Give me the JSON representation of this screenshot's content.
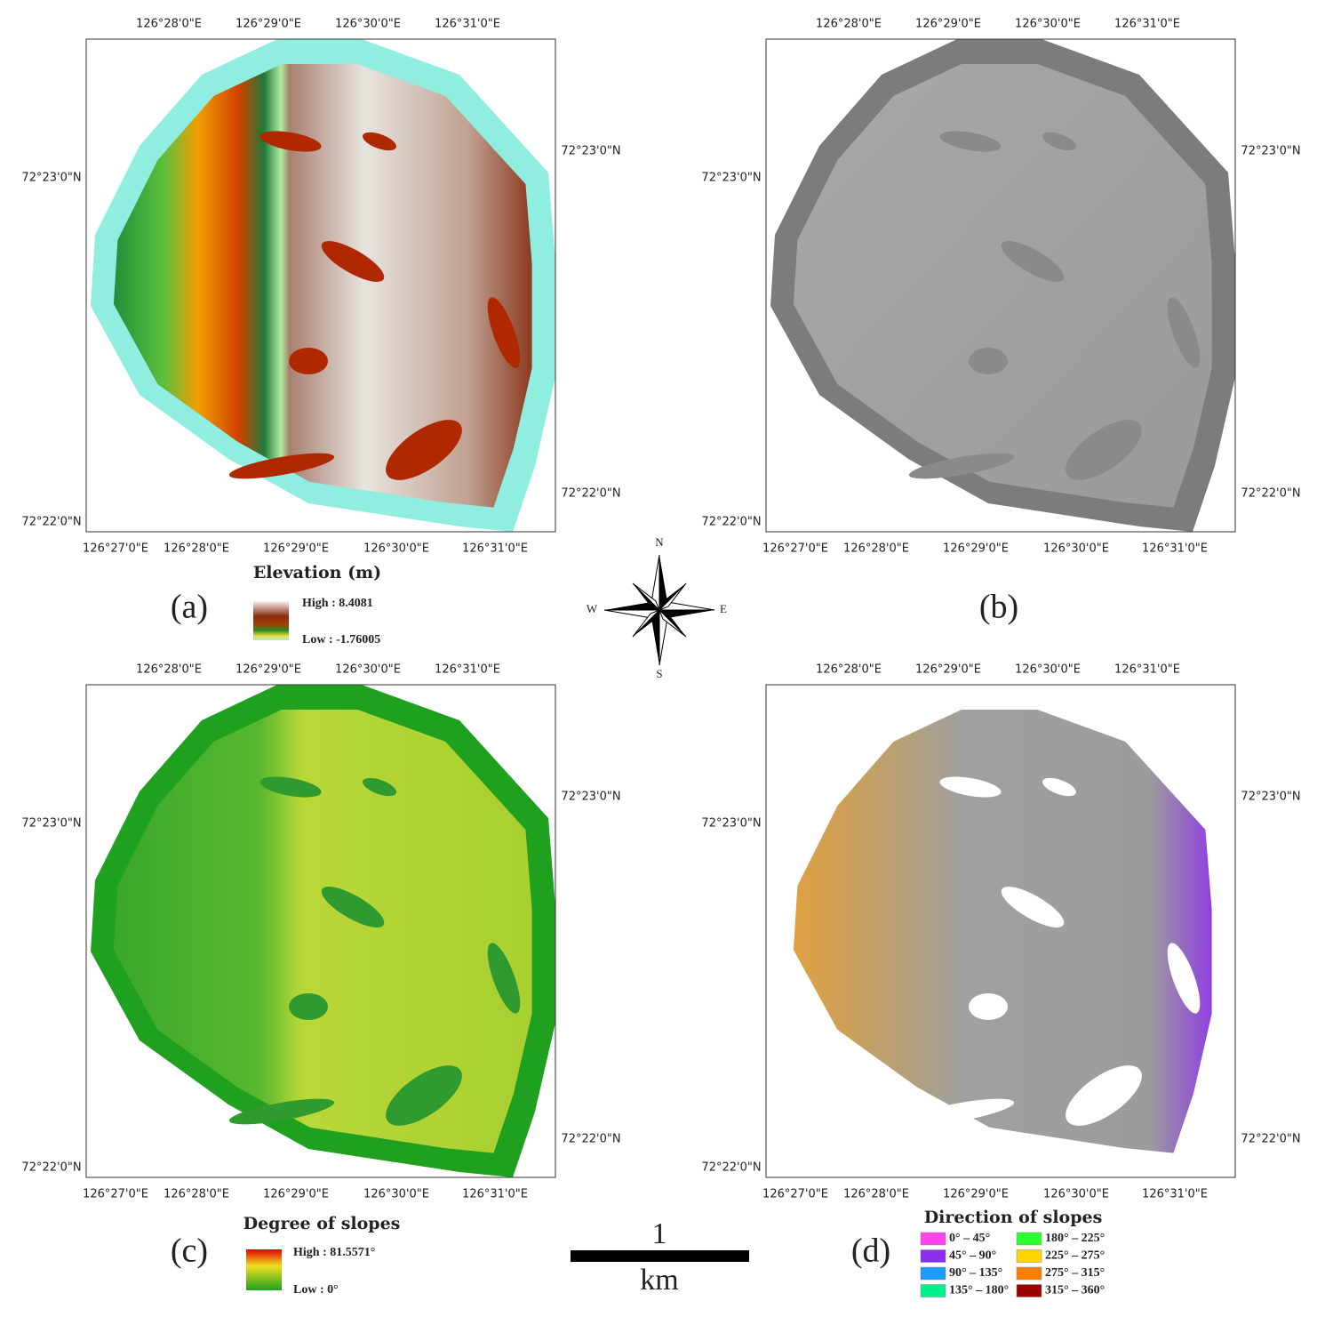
{
  "panels": [
    {
      "label": "(a)",
      "top_lon": [
        "126°28'0\"E",
        "126°29'0\"E",
        "126°30'0\"E",
        "126°31'0\"E"
      ],
      "bottom_lon": [
        "126°27'0\"E",
        "126°28'0\"E",
        "126°29'0\"E",
        "126°30'0\"E",
        "126°31'0\"E"
      ],
      "left_lat": [
        "72°23'0\"N",
        "72°22'0\"N"
      ],
      "right_lat": [
        "72°23'0\"N",
        "72°22'0\"N"
      ],
      "legend": {
        "title": "Elevation (m)",
        "high": "High : 8.4081",
        "low": "Low : -1.76005"
      }
    },
    {
      "label": "(b)",
      "top_lon": [
        "126°28'0\"E",
        "126°29'0\"E",
        "126°30'0\"E",
        "126°31'0\"E"
      ],
      "bottom_lon": [
        "126°27'0\"E",
        "126°28'0\"E",
        "126°29'0\"E",
        "126°30'0\"E",
        "126°31'0\"E"
      ],
      "left_lat": [
        "72°23'0\"N",
        "72°22'0\"N"
      ],
      "right_lat": [
        "72°23'0\"N",
        "72°22'0\"N"
      ]
    },
    {
      "label": "(c)",
      "top_lon": [
        "126°28'0\"E",
        "126°29'0\"E",
        "126°30'0\"E",
        "126°31'0\"E"
      ],
      "bottom_lon": [
        "126°27'0\"E",
        "126°28'0\"E",
        "126°29'0\"E",
        "126°30'0\"E",
        "126°31'0\"E"
      ],
      "left_lat": [
        "72°23'0\"N",
        "72°22'0\"N"
      ],
      "right_lat": [
        "72°23'0\"N",
        "72°22'0\"N"
      ],
      "legend": {
        "title": "Degree of slopes",
        "high": "High : 81.5571°",
        "low": "Low : 0°"
      }
    },
    {
      "label": "(d)",
      "top_lon": [
        "126°28'0\"E",
        "126°29'0\"E",
        "126°30'0\"E",
        "126°31'0\"E"
      ],
      "bottom_lon": [
        "126°27'0\"E",
        "126°28'0\"E",
        "126°29'0\"E",
        "126°30'0\"E",
        "126°31'0\"E"
      ],
      "left_lat": [
        "72°23'0\"N",
        "72°22'0\"N"
      ],
      "right_lat": [
        "72°23'0\"N",
        "72°22'0\"N"
      ],
      "legend": {
        "title": "Direction of slopes",
        "classes": [
          {
            "label": "0° – 45°",
            "color": "#ff44ee"
          },
          {
            "label": "45° – 90°",
            "color": "#8a2ff0"
          },
          {
            "label": "90° – 135°",
            "color": "#1e9bff"
          },
          {
            "label": "135° – 180°",
            "color": "#00f08c"
          },
          {
            "label": "180° – 225°",
            "color": "#2eff2e"
          },
          {
            "label": "225° – 275°",
            "color": "#ffd400"
          },
          {
            "label": "275° – 315°",
            "color": "#ff8000"
          },
          {
            "label": "315° – 360°",
            "color": "#9a0000"
          }
        ]
      }
    }
  ],
  "compass": {
    "n": "N",
    "e": "E",
    "s": "S",
    "w": "W"
  },
  "scale_bar": {
    "value": "1",
    "unit": "km"
  }
}
